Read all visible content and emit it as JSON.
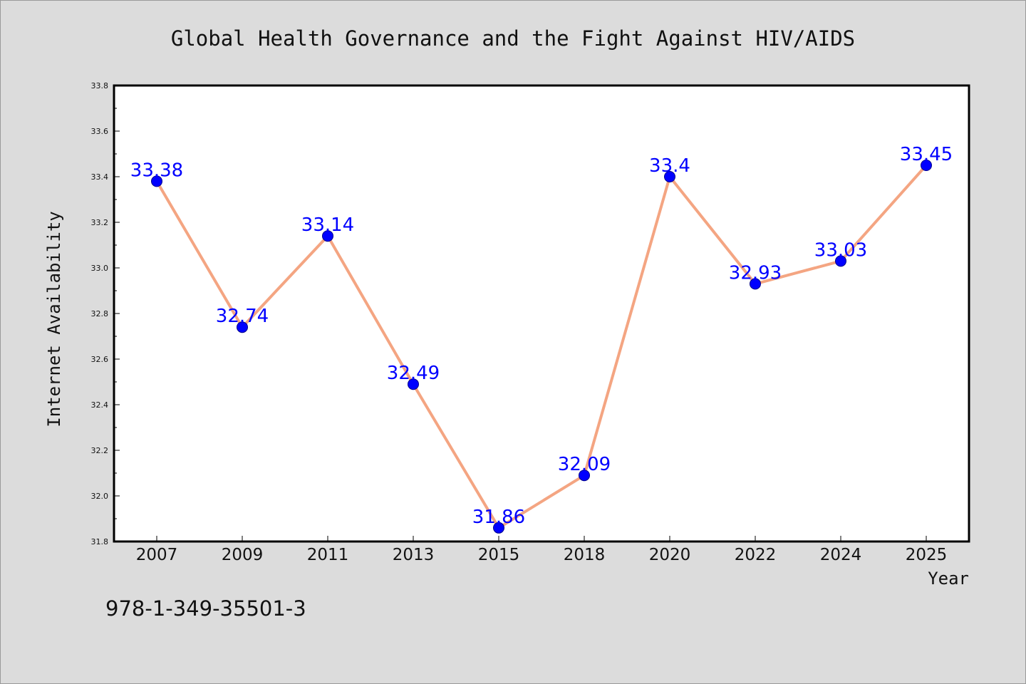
{
  "chart_data": {
    "type": "line",
    "title": "Global Health Governance and the Fight Against HIV/AIDS",
    "xlabel": "Year",
    "ylabel": "Internet Availability",
    "categories": [
      "2007",
      "2009",
      "2011",
      "2013",
      "2015",
      "2018",
      "2020",
      "2022",
      "2024",
      "2025"
    ],
    "series": [
      {
        "values": [
          33.38,
          32.74,
          33.14,
          32.49,
          31.86,
          32.09,
          33.4,
          32.93,
          33.03,
          33.45
        ],
        "data_labels": [
          "33.38",
          "32.74",
          "33.14",
          "32.49",
          "31.86",
          "32.09",
          "33.4",
          "32.93",
          "33.03",
          "33.45"
        ]
      }
    ],
    "ylim": [
      31.8,
      33.8
    ],
    "yticks": [
      "31.8",
      "32.0",
      "32.2",
      "32.4",
      "32.6",
      "32.8",
      "33.0",
      "33.2",
      "33.4",
      "33.6",
      "33.8"
    ],
    "grid": false,
    "legend": "none",
    "colors": {
      "line": "#f4a582",
      "marker_fill": "#0000ff",
      "marker_edge": "#00008b",
      "data_label": "#0000ff",
      "plot_background": "#ffffff",
      "figure_background": "#dcdcdc"
    }
  },
  "annotation": {
    "isbn": "978-1-349-35501-3"
  }
}
